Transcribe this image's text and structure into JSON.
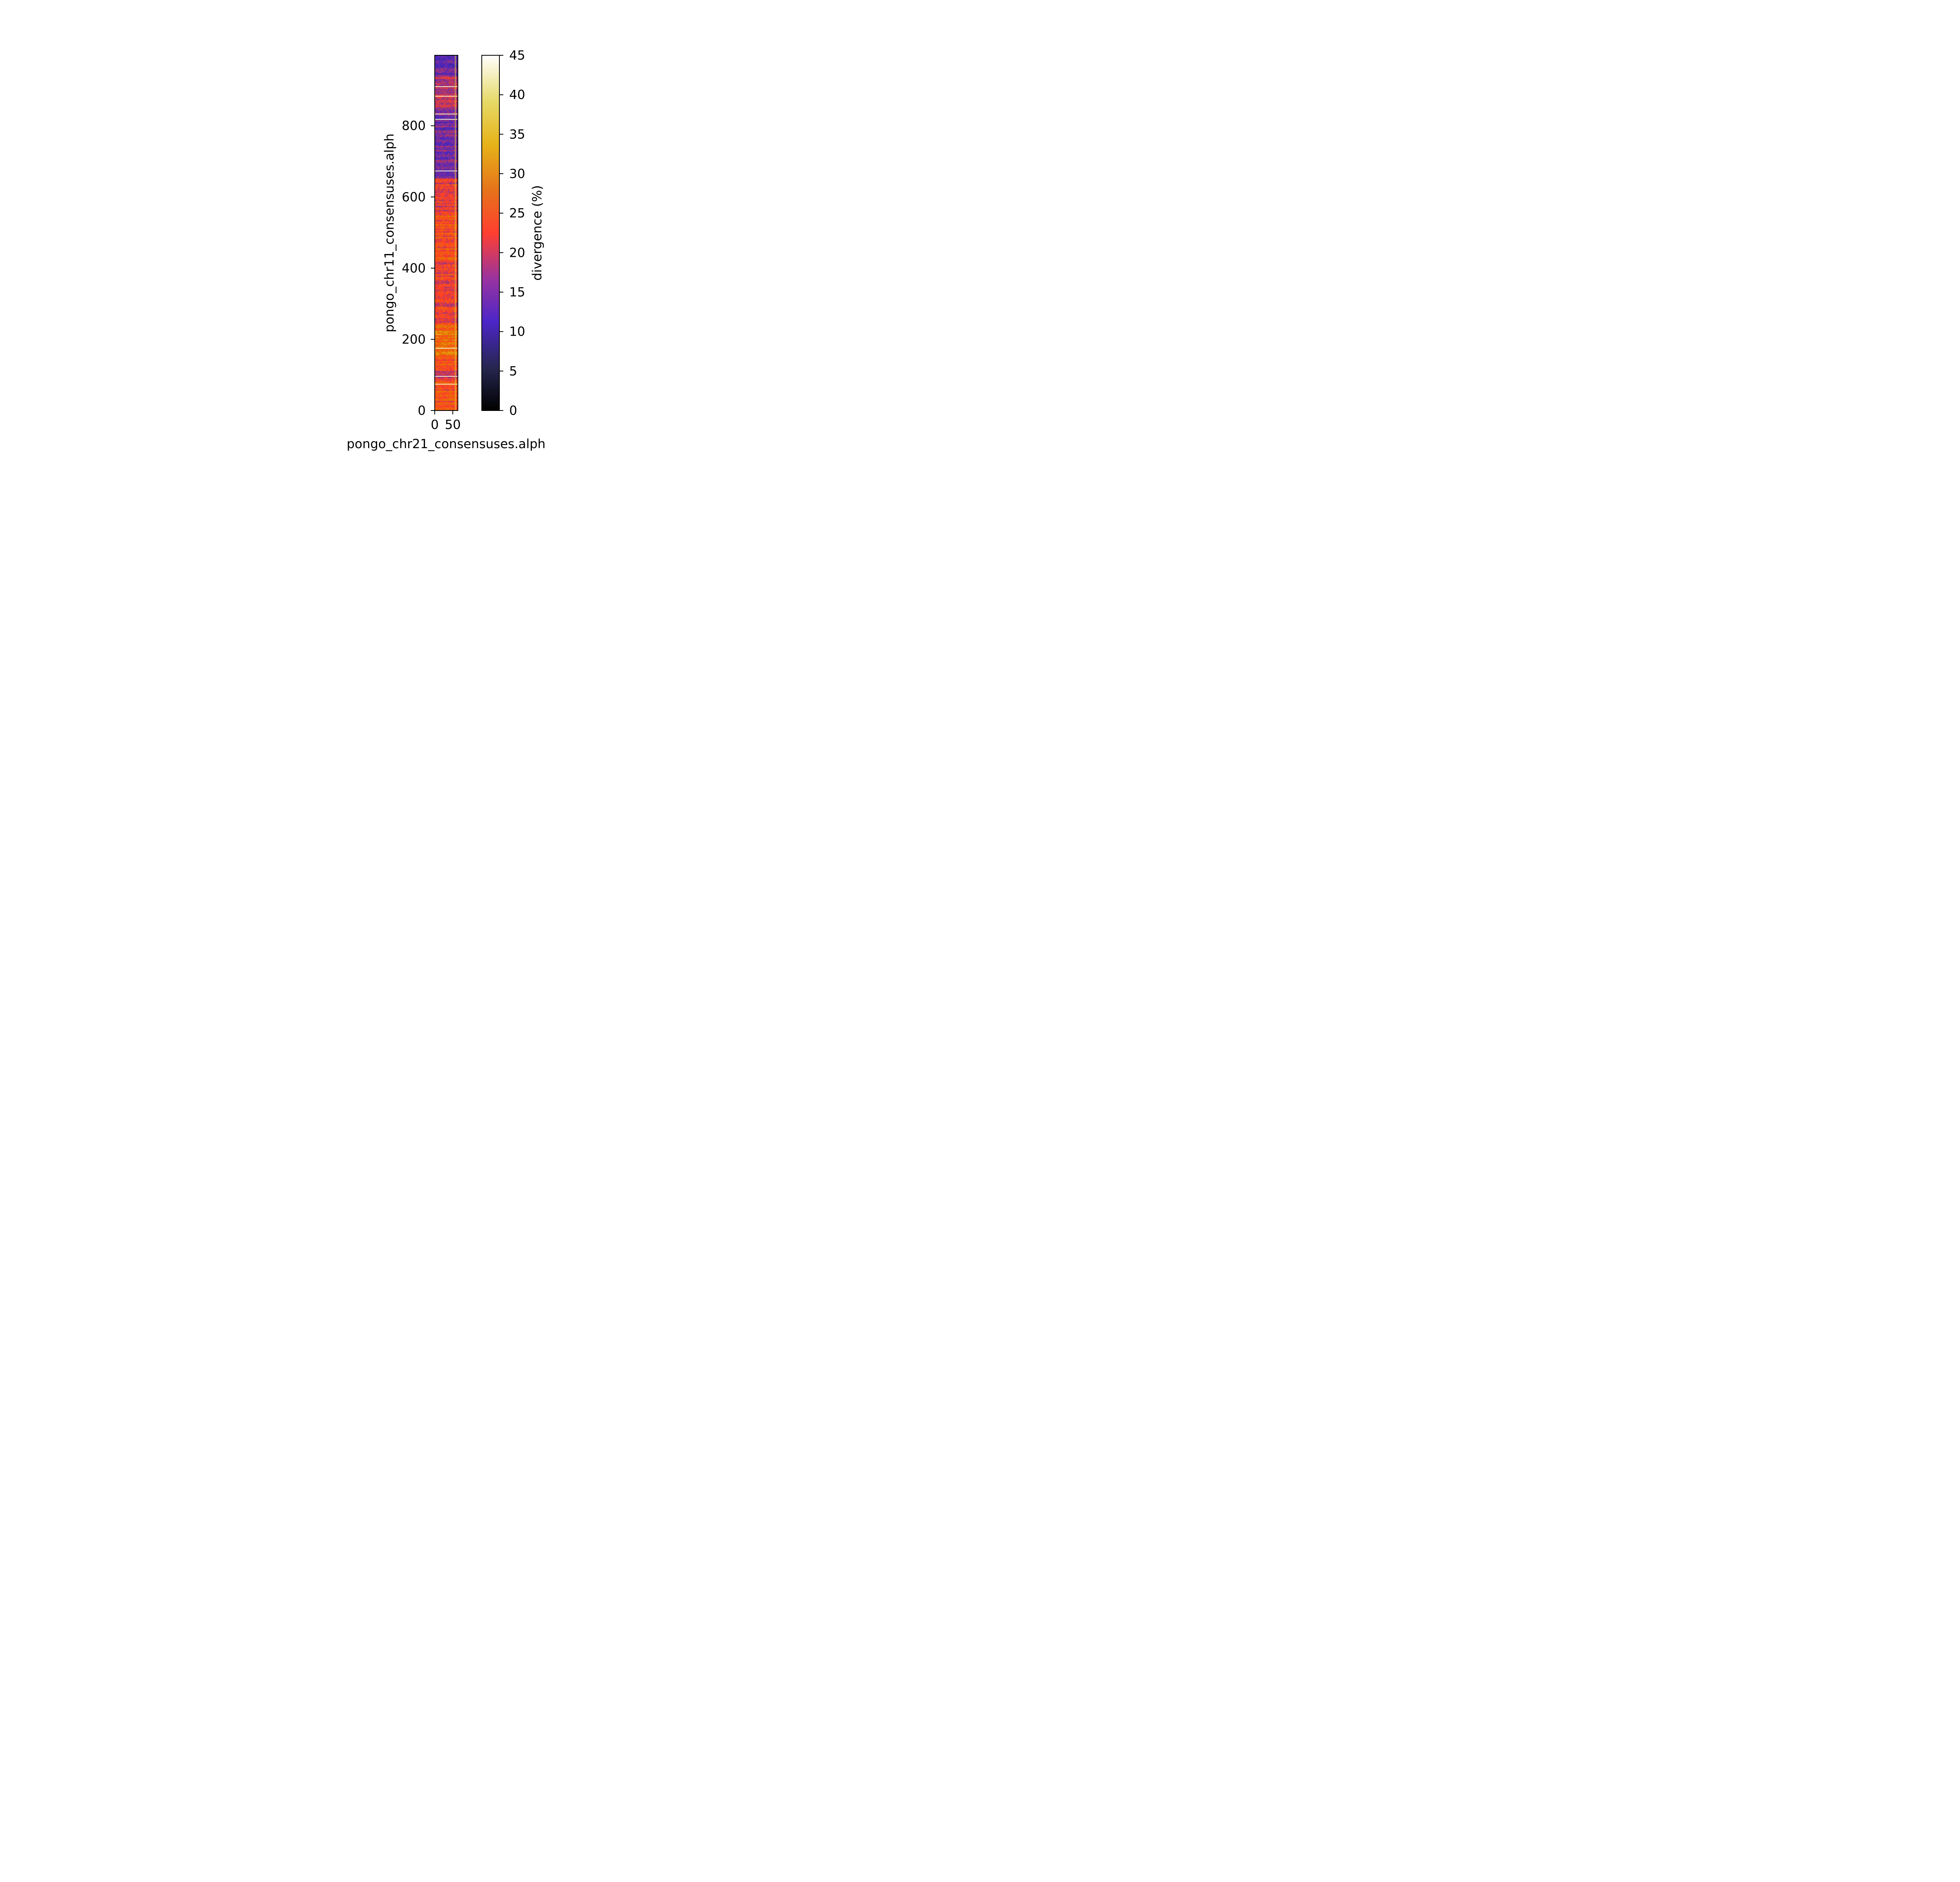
{
  "chart_data": {
    "type": "heatmap",
    "xlabel": "pongo_chr21_consensuses.alph",
    "ylabel": "pongo_chr11_consensuses.alph",
    "x_range": [
      0,
      64
    ],
    "y_range": [
      0,
      998
    ],
    "x_ticks": [
      0,
      50
    ],
    "y_ticks": [
      0,
      200,
      400,
      600,
      800
    ],
    "colormap": "CMRmap",
    "colorbar": {
      "label": "divergence (%)",
      "range": [
        0,
        45
      ],
      "ticks": [
        0,
        5,
        10,
        15,
        20,
        25,
        30,
        35,
        40,
        45
      ]
    },
    "row_bands": [
      {
        "y_start": 0,
        "y_end": 90,
        "mean_divergence": 24
      },
      {
        "y_start": 90,
        "y_end": 110,
        "mean_divergence": 19
      },
      {
        "y_start": 110,
        "y_end": 150,
        "mean_divergence": 24
      },
      {
        "y_start": 150,
        "y_end": 240,
        "mean_divergence": 27
      },
      {
        "y_start": 240,
        "y_end": 420,
        "mean_divergence": 22
      },
      {
        "y_start": 420,
        "y_end": 560,
        "mean_divergence": 24
      },
      {
        "y_start": 560,
        "y_end": 650,
        "mean_divergence": 21
      },
      {
        "y_start": 650,
        "y_end": 850,
        "mean_divergence": 14
      },
      {
        "y_start": 850,
        "y_end": 940,
        "mean_divergence": 19
      },
      {
        "y_start": 940,
        "y_end": 998,
        "mean_divergence": 13
      }
    ],
    "bright_rows": [
      74,
      96,
      175,
      673,
      818,
      833,
      883,
      910
    ],
    "bright_column": 57
  }
}
